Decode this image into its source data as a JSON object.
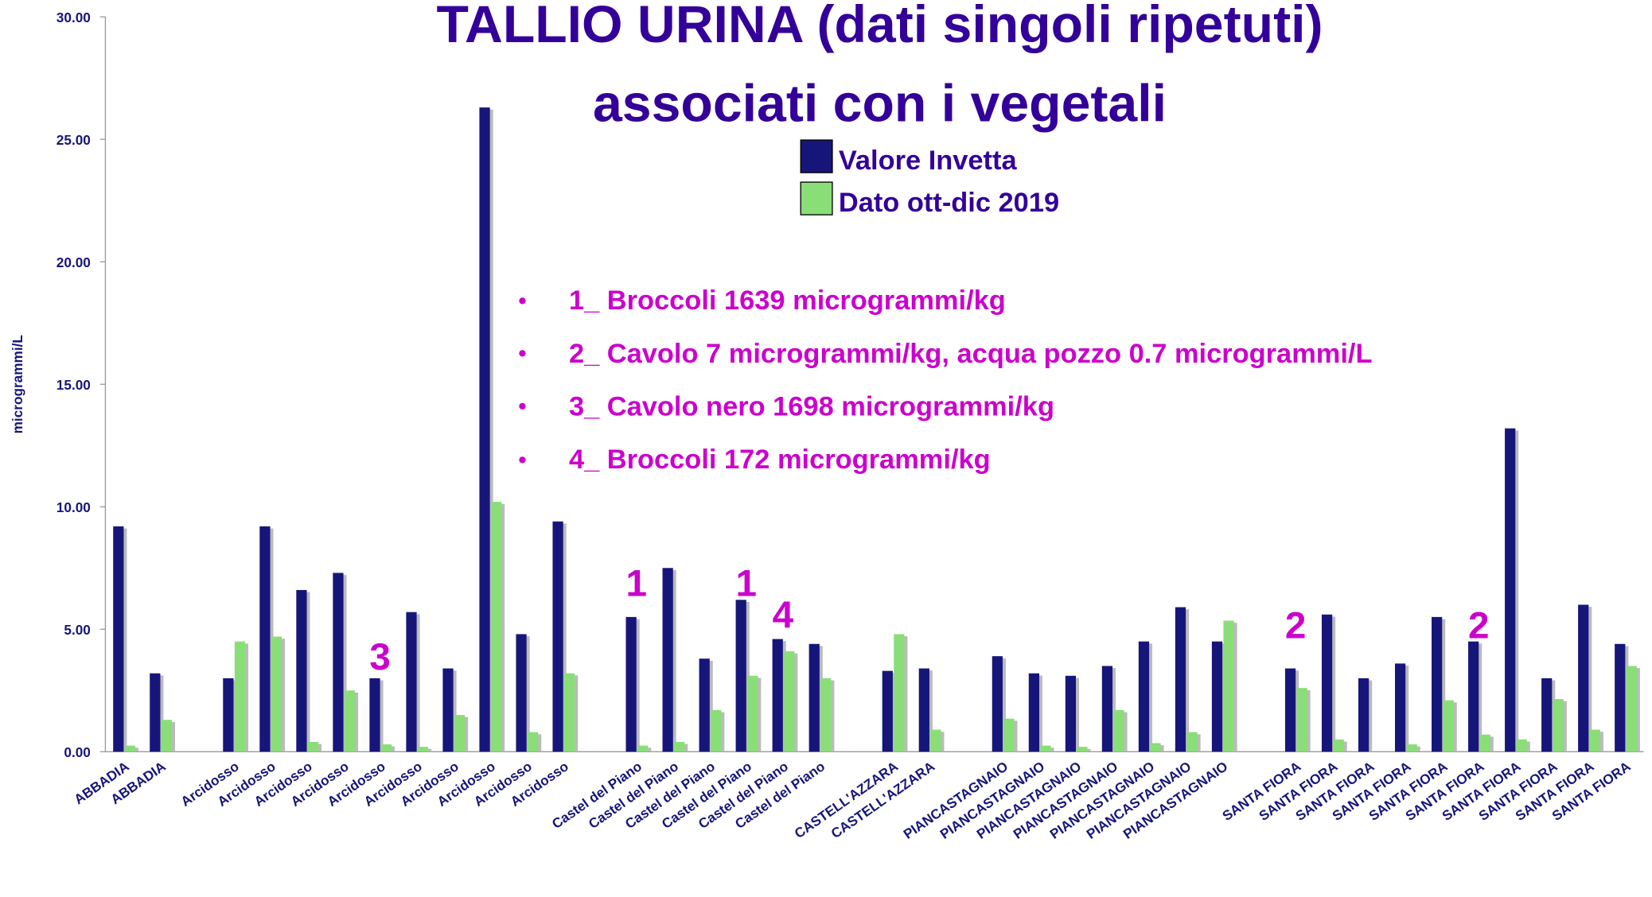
{
  "chart_data": {
    "type": "bar",
    "title": [
      "TALLIO URINA (dati singoli ripetuti)",
      "associati con i vegetali"
    ],
    "y_label": "microgrammi/L",
    "categories": [
      "ABBADIA",
      "ABBADIA",
      null,
      "Arcidosso",
      "Arcidosso",
      "Arcidosso",
      "Arcidosso",
      "Arcidosso",
      "Arcidosso",
      "Arcidosso",
      "Arcidosso",
      "Arcidosso",
      "Arcidosso",
      null,
      "Castel del Piano",
      "Castel del Piano",
      "Castel del Piano",
      "Castel del Piano",
      "Castel del Piano",
      "Castel del Piano",
      null,
      "CASTELL'AZZARA",
      "CASTELL'AZZARA",
      null,
      "PIANCASTAGNAIO",
      "PIANCASTAGNAIO",
      "PIANCASTAGNAIO",
      "PIANCASTAGNAIO",
      "PIANCASTAGNAIO",
      "PIANCASTAGNAIO",
      "PIANCASTAGNAIO",
      null,
      "SANTA  FIORA",
      "SANTA  FIORA",
      "SANTA  FIORA",
      "SANTA  FIORA",
      "SANTA  FIORA",
      "SANTA  FIORA",
      "SANTA  FIORA",
      "SANTA  FIORA",
      "SANTA  FIORA",
      "SANTA  FIORA"
    ],
    "series": [
      {
        "name": "Valore Invetta",
        "color": "#16167a",
        "values": [
          9.2,
          3.2,
          null,
          3.0,
          9.2,
          6.6,
          7.3,
          3.0,
          5.7,
          3.4,
          26.3,
          4.8,
          9.4,
          null,
          5.5,
          7.5,
          3.8,
          6.2,
          4.6,
          4.4,
          null,
          3.3,
          3.4,
          null,
          3.9,
          3.2,
          3.1,
          3.5,
          4.5,
          5.9,
          4.5,
          null,
          3.4,
          5.6,
          3.0,
          3.6,
          5.5,
          4.5,
          13.2,
          3.0,
          6.0,
          4.4
        ]
      },
      {
        "name": "Dato ott-dic 2019",
        "color": "#8ade77",
        "values": [
          0.25,
          1.3,
          null,
          4.5,
          4.7,
          0.4,
          2.5,
          0.3,
          0.2,
          1.5,
          10.2,
          0.8,
          3.2,
          null,
          0.25,
          0.4,
          1.7,
          3.1,
          4.1,
          3.0,
          null,
          4.8,
          0.9,
          null,
          1.35,
          0.25,
          0.2,
          1.7,
          0.35,
          0.8,
          5.35,
          null,
          2.6,
          0.5,
          0,
          0.3,
          2.1,
          0.7,
          0.5,
          2.15,
          0.9,
          3.5
        ]
      }
    ],
    "ylim": [
      0,
      30
    ],
    "yticks": [
      {
        "value": 0,
        "label": "0.00"
      },
      {
        "value": 5,
        "label": "5.00"
      },
      {
        "value": 10,
        "label": "10.00"
      },
      {
        "value": 15,
        "label": "15.00"
      },
      {
        "value": 20,
        "label": "20.00"
      },
      {
        "value": 25,
        "label": "25.00"
      },
      {
        "value": 30,
        "label": "30.00"
      }
    ],
    "annotations": [
      "3",
      "1",
      "1",
      "4",
      "2",
      "2"
    ],
    "notes": [
      "1_ Broccoli 1639 microgrammi/kg",
      "2_ Cavolo 7 microgrammi/kg, acqua pozzo 0.7 microgrammi/L",
      "3_ Cavolo nero 1698 microgrammi/kg",
      "4_ Broccoli 172 microgrammi/kg"
    ]
  }
}
